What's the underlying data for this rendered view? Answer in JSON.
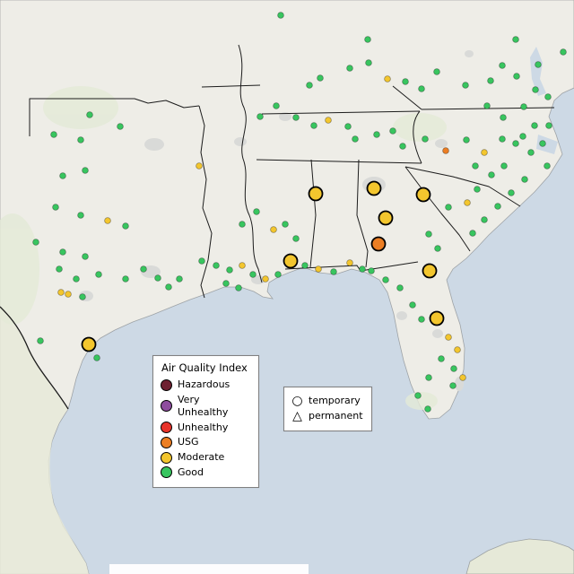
{
  "legend_aqi": {
    "title": "Air Quality Index",
    "items": [
      {
        "label": "Hazardous",
        "level": "hazardous"
      },
      {
        "label": "Very Unhealthy",
        "level": "very_unhealthy"
      },
      {
        "label": "Unhealthy",
        "level": "unhealthy"
      },
      {
        "label": "USG",
        "level": "usg"
      },
      {
        "label": "Moderate",
        "level": "moderate"
      },
      {
        "label": "Good",
        "level": "good"
      }
    ]
  },
  "legend_shapes": {
    "items": [
      {
        "label": "temporary",
        "shape": "circle"
      },
      {
        "label": "permanent",
        "shape": "triangle"
      }
    ]
  },
  "aqi_colors": {
    "hazardous": "#6e2131",
    "very_unhealthy": "#8e4d9e",
    "unhealthy": "#e8332a",
    "usg": "#ec7e23",
    "moderate": "#f3c62e",
    "good": "#38c55f"
  },
  "attribution": {
    "text": ""
  },
  "points": {
    "small_radius": 3.4,
    "large_radius": 7.5,
    "small": [
      [
        313,
        17,
        "good"
      ],
      [
        410,
        44,
        "good"
      ],
      [
        575,
        44,
        "good"
      ],
      [
        628,
        58,
        "good"
      ],
      [
        600,
        72,
        "good"
      ],
      [
        560,
        73,
        "good"
      ],
      [
        345,
        95,
        "good"
      ],
      [
        357,
        87,
        "good"
      ],
      [
        390,
        76,
        "good"
      ],
      [
        411,
        70,
        "good"
      ],
      [
        432,
        88,
        "moderate"
      ],
      [
        452,
        91,
        "good"
      ],
      [
        470,
        99,
        "good"
      ],
      [
        487,
        80,
        "good"
      ],
      [
        519,
        95,
        "good"
      ],
      [
        547,
        90,
        "good"
      ],
      [
        576,
        85,
        "good"
      ],
      [
        597,
        100,
        "good"
      ],
      [
        611,
        108,
        "good"
      ],
      [
        584,
        119,
        "good"
      ],
      [
        561,
        131,
        "good"
      ],
      [
        543,
        118,
        "good"
      ],
      [
        612,
        140,
        "good"
      ],
      [
        596,
        140,
        "good"
      ],
      [
        583,
        152,
        "good"
      ],
      [
        605,
        160,
        "good"
      ],
      [
        592,
        170,
        "good"
      ],
      [
        575,
        160,
        "good"
      ],
      [
        560,
        155,
        "good"
      ],
      [
        610,
        185,
        "good"
      ],
      [
        290,
        130,
        "good"
      ],
      [
        308,
        118,
        "good"
      ],
      [
        330,
        131,
        "good"
      ],
      [
        350,
        140,
        "good"
      ],
      [
        366,
        134,
        "moderate"
      ],
      [
        388,
        141,
        "good"
      ],
      [
        396,
        155,
        "good"
      ],
      [
        420,
        150,
        "good"
      ],
      [
        438,
        146,
        "good"
      ],
      [
        449,
        163,
        "good"
      ],
      [
        474,
        155,
        "good"
      ],
      [
        497,
        168,
        "usg"
      ],
      [
        520,
        156,
        "good"
      ],
      [
        540,
        170,
        "moderate"
      ],
      [
        530,
        185,
        "good"
      ],
      [
        548,
        195,
        "good"
      ],
      [
        562,
        185,
        "good"
      ],
      [
        585,
        200,
        "good"
      ],
      [
        570,
        215,
        "good"
      ],
      [
        555,
        230,
        "good"
      ],
      [
        540,
        245,
        "good"
      ],
      [
        527,
        260,
        "good"
      ],
      [
        100,
        128,
        "good"
      ],
      [
        134,
        141,
        "good"
      ],
      [
        90,
        156,
        "good"
      ],
      [
        60,
        150,
        "good"
      ],
      [
        95,
        190,
        "good"
      ],
      [
        70,
        196,
        "good"
      ],
      [
        222,
        185,
        "moderate"
      ],
      [
        270,
        250,
        "good"
      ],
      [
        286,
        236,
        "good"
      ],
      [
        305,
        256,
        "moderate"
      ],
      [
        318,
        250,
        "good"
      ],
      [
        330,
        266,
        "good"
      ],
      [
        120,
        246,
        "moderate"
      ],
      [
        140,
        252,
        "good"
      ],
      [
        90,
        240,
        "good"
      ],
      [
        62,
        231,
        "good"
      ],
      [
        160,
        300,
        "good"
      ],
      [
        176,
        310,
        "good"
      ],
      [
        188,
        320,
        "good"
      ],
      [
        200,
        311,
        "good"
      ],
      [
        140,
        311,
        "good"
      ],
      [
        40,
        270,
        "good"
      ],
      [
        70,
        281,
        "good"
      ],
      [
        95,
        286,
        "good"
      ],
      [
        66,
        300,
        "good"
      ],
      [
        85,
        311,
        "good"
      ],
      [
        110,
        306,
        "good"
      ],
      [
        68,
        326,
        "moderate"
      ],
      [
        76,
        328,
        "moderate"
      ],
      [
        92,
        331,
        "good"
      ],
      [
        45,
        380,
        "good"
      ],
      [
        108,
        399,
        "good"
      ],
      [
        225,
        291,
        "good"
      ],
      [
        241,
        296,
        "good"
      ],
      [
        256,
        301,
        "good"
      ],
      [
        270,
        296,
        "moderate"
      ],
      [
        282,
        306,
        "good"
      ],
      [
        296,
        311,
        "moderate"
      ],
      [
        310,
        306,
        "good"
      ],
      [
        252,
        316,
        "good"
      ],
      [
        266,
        321,
        "good"
      ],
      [
        340,
        296,
        "good"
      ],
      [
        355,
        300,
        "moderate"
      ],
      [
        372,
        303,
        "good"
      ],
      [
        390,
        293,
        "moderate"
      ],
      [
        404,
        300,
        "good"
      ],
      [
        478,
        261,
        "good"
      ],
      [
        488,
        277,
        "good"
      ],
      [
        500,
        231,
        "good"
      ],
      [
        521,
        226,
        "moderate"
      ],
      [
        532,
        211,
        "good"
      ],
      [
        414,
        302,
        "good"
      ],
      [
        430,
        312,
        "good"
      ],
      [
        446,
        321,
        "good"
      ],
      [
        460,
        340,
        "good"
      ],
      [
        470,
        356,
        "good"
      ],
      [
        500,
        376,
        "moderate"
      ],
      [
        510,
        390,
        "moderate"
      ],
      [
        492,
        400,
        "good"
      ],
      [
        506,
        411,
        "good"
      ],
      [
        478,
        421,
        "good"
      ],
      [
        516,
        421,
        "moderate"
      ],
      [
        466,
        441,
        "good"
      ],
      [
        477,
        456,
        "good"
      ],
      [
        505,
        430,
        "good"
      ]
    ],
    "large": [
      [
        352,
        216,
        "moderate"
      ],
      [
        417,
        210,
        "moderate"
      ],
      [
        472,
        217,
        "moderate"
      ],
      [
        430,
        243,
        "moderate"
      ],
      [
        422,
        272,
        "usg"
      ],
      [
        324,
        291,
        "moderate"
      ],
      [
        479,
        302,
        "moderate"
      ],
      [
        487,
        355,
        "moderate"
      ],
      [
        99,
        384,
        "moderate"
      ]
    ]
  }
}
